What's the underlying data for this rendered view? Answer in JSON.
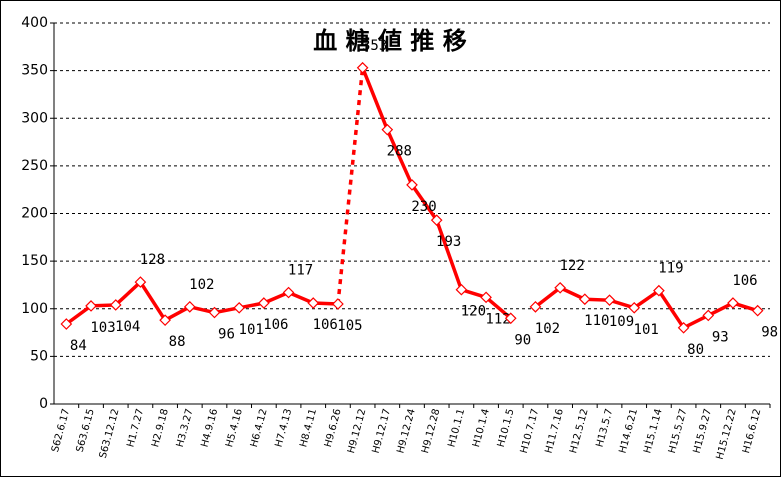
{
  "chart_data": {
    "type": "line",
    "title": "血 糖 値 推 移",
    "categories": [
      "S62.6.17",
      "S63.6.15",
      "S63.12.12",
      "H1.7.27",
      "H2.9.18",
      "H3.3.27",
      "H4.9.16",
      "H5.4.16",
      "H6.4.12",
      "H7.4.13",
      "H8.4.11",
      "H9.6.26",
      "H9.12.12",
      "H9.12.17",
      "H9.12.24",
      "H9.12.28",
      "H10.1.1",
      "H10.1.4",
      "H10.1.5",
      "H10.7.17",
      "H11.7.16",
      "H12.5.12",
      "H13.5.7",
      "H14.6.21",
      "H15.1.14",
      "H15.5.27",
      "H15.9.27",
      "H15.12.22",
      "H16.6.12"
    ],
    "series": [
      {
        "color": "#ff0000",
        "values": [
          84,
          103,
          104,
          128,
          88,
          102,
          96,
          101,
          106,
          117,
          106,
          105,
          353,
          288,
          230,
          193,
          120,
          112,
          90,
          102,
          122,
          110,
          109,
          101,
          119,
          80,
          93,
          106,
          98
        ]
      }
    ],
    "dashed_after": [
      11
    ],
    "gap_after": [
      18
    ],
    "ylim": [
      0,
      400
    ],
    "yticks": [
      0,
      50,
      100,
      150,
      200,
      250,
      300,
      350,
      400
    ],
    "grid": true
  }
}
